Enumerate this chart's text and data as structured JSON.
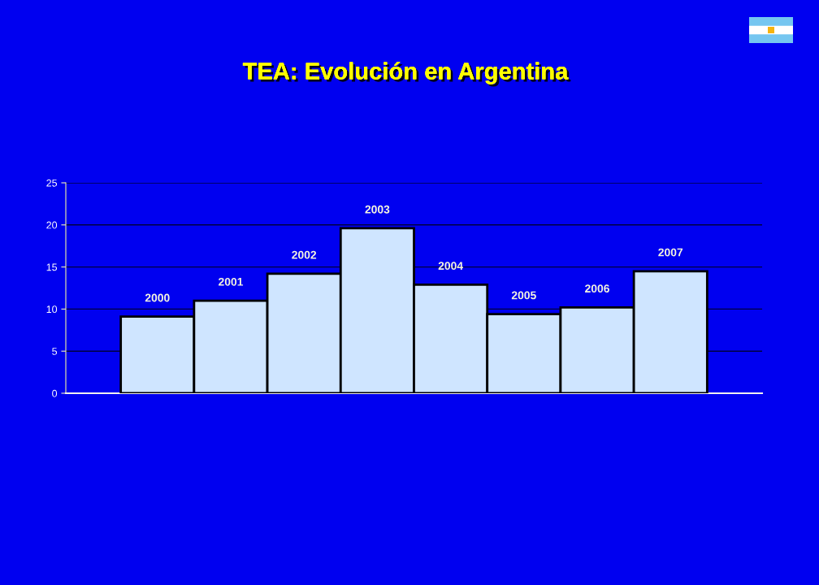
{
  "chart_data": {
    "type": "bar",
    "title": "TEA: Evolución en Argentina",
    "categories": [
      "2000",
      "2001",
      "2002",
      "2003",
      "2004",
      "2005",
      "2006",
      "2007"
    ],
    "values": [
      9.1,
      11.0,
      14.2,
      19.6,
      12.9,
      9.4,
      10.2,
      14.5
    ],
    "color": "#cfe5ff",
    "ylim": [
      0,
      25
    ],
    "yticks": [
      0,
      5,
      10,
      15,
      20,
      25
    ],
    "grid": "y"
  }
}
